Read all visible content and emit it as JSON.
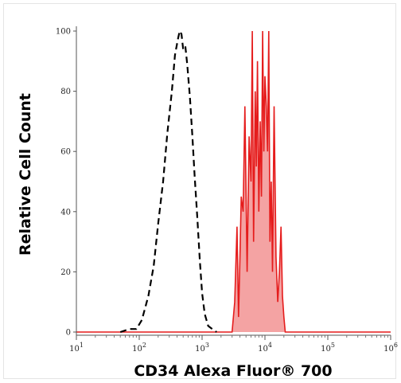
{
  "chart_data": {
    "type": "area",
    "xlabel": "CD34 Alexa Fluor® 700",
    "ylabel": "Relative Cell Count",
    "x_scale": "log",
    "xlim": [
      10,
      1000000
    ],
    "ylim": [
      0,
      100
    ],
    "grid": false,
    "legend": "none",
    "x_ticks": [
      {
        "value": 10,
        "base": "10",
        "exp": "1"
      },
      {
        "value": 100,
        "base": "10",
        "exp": "2"
      },
      {
        "value": 1000,
        "base": "10",
        "exp": "3"
      },
      {
        "value": 10000,
        "base": "10",
        "exp": "4"
      },
      {
        "value": 100000,
        "base": "10",
        "exp": "5"
      },
      {
        "value": 1000000,
        "base": "10",
        "exp": "6"
      }
    ],
    "y_ticks": [
      "0",
      "20",
      "40",
      "60",
      "80",
      "100"
    ],
    "series": [
      {
        "style": "dashed",
        "color": "#000000",
        "x": [
          50,
          70,
          90,
          110,
          140,
          170,
          200,
          240,
          280,
          330,
          370,
          410,
          440,
          470,
          500,
          540,
          580,
          640,
          700,
          760,
          840,
          920,
          1000,
          1100,
          1250,
          1450,
          1700
        ],
        "y": [
          0,
          1,
          1,
          4,
          12,
          22,
          36,
          50,
          66,
          80,
          92,
          97,
          100,
          99,
          94,
          95,
          89,
          78,
          65,
          52,
          38,
          24,
          13,
          6,
          2,
          1,
          0
        ]
      },
      {
        "style": "filled",
        "color": "#e51c1c",
        "x": [
          3000,
          3300,
          3600,
          3800,
          4000,
          4200,
          4500,
          4800,
          5200,
          5600,
          6000,
          6300,
          6600,
          7000,
          7300,
          7600,
          8000,
          8400,
          8800,
          9200,
          9600,
          10000,
          10500,
          11000,
          11500,
          12000,
          12600,
          13200,
          14000,
          15000,
          16000,
          17000,
          18000,
          19000,
          20000,
          21000
        ],
        "y": [
          0,
          10,
          35,
          5,
          25,
          45,
          40,
          75,
          20,
          65,
          50,
          100,
          30,
          80,
          55,
          90,
          40,
          70,
          45,
          100,
          60,
          85,
          75,
          60,
          100,
          30,
          50,
          20,
          75,
          25,
          10,
          20,
          35,
          12,
          5,
          0
        ]
      }
    ]
  }
}
